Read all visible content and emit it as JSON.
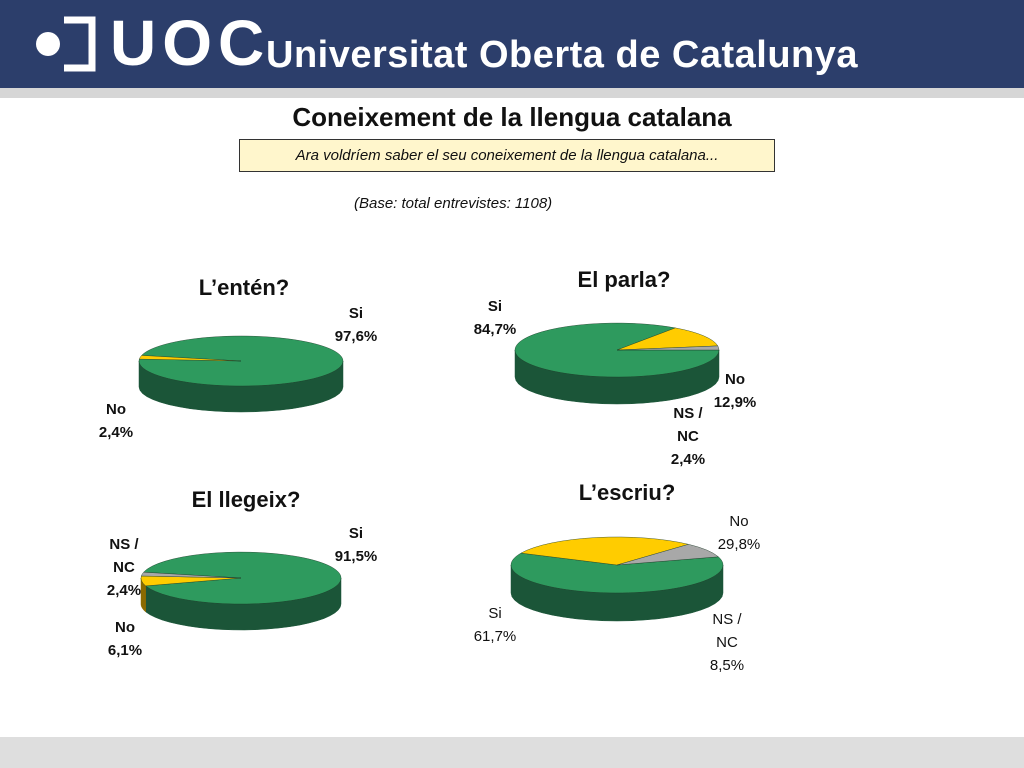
{
  "header": {
    "logo_text": "UOC",
    "org_name": "Universitat Oberta de Catalunya"
  },
  "page": {
    "title": "Coneixement de la llengua catalana",
    "question": "Ara voldríem saber el seu coneixement de la llengua catalana...",
    "base_note": "(Base: total entrevistes: 1108)"
  },
  "colors": {
    "si": "#2e9a5e",
    "si_side": "#1b5538",
    "no": "#ffcc00",
    "no_side": "#8a6a00",
    "nsnc": "#a8a8a8",
    "nsnc_side": "#666666",
    "header": "#2c3e6b"
  },
  "chart_data": [
    {
      "type": "pie",
      "title": "L’entén?",
      "slices": [
        {
          "name": "Si",
          "value": 97.6,
          "label": "Si",
          "display": "97,6%"
        },
        {
          "name": "No",
          "value": 2.4,
          "label": "No",
          "display": "2,4%"
        }
      ]
    },
    {
      "type": "pie",
      "title": "El parla?",
      "slices": [
        {
          "name": "Si",
          "value": 84.7,
          "label": "Si",
          "display": "84,7%"
        },
        {
          "name": "No",
          "value": 12.9,
          "label": "No",
          "display": "12,9%"
        },
        {
          "name": "NS / NC",
          "value": 2.4,
          "label": "NS / NC",
          "display": "2,4%"
        }
      ]
    },
    {
      "type": "pie",
      "title": "El llegeix?",
      "slices": [
        {
          "name": "Si",
          "value": 91.5,
          "label": "Si",
          "display": "91,5%"
        },
        {
          "name": "No",
          "value": 6.1,
          "label": "No",
          "display": "6,1%"
        },
        {
          "name": "NS / NC",
          "value": 2.4,
          "label": "NS / NC",
          "display": "2,4%"
        }
      ]
    },
    {
      "type": "pie",
      "title": "L’escriu?",
      "slices": [
        {
          "name": "Si",
          "value": 61.7,
          "label": "Si",
          "display": "61,7%"
        },
        {
          "name": "No",
          "value": 29.8,
          "label": "No",
          "display": "29,8%"
        },
        {
          "name": "NS / NC",
          "value": 8.5,
          "label": "NS / NC",
          "display": "8,5%"
        }
      ]
    }
  ]
}
